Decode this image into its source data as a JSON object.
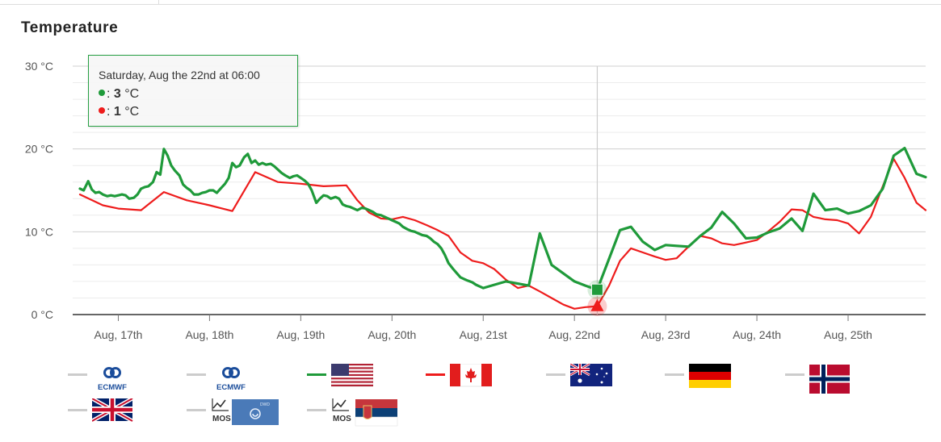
{
  "title": "Temperature",
  "colors": {
    "series_green": "#1f9a3a",
    "series_red": "#ee1c1c",
    "grid": "#d8d8d8",
    "crosshair": "#cccccc"
  },
  "tooltip": {
    "header": "Saturday, Aug the 22nd at 06:00",
    "rows": [
      {
        "color": "#1f9a3a",
        "value": "3",
        "unit": "°C"
      },
      {
        "color": "#ee1c1c",
        "value": "1",
        "unit": "°C"
      }
    ]
  },
  "legend": [
    {
      "name": "ECMWF",
      "icon": "ecmwf-logo",
      "active": false
    },
    {
      "name": "ECMWF",
      "icon": "ecmwf-logo",
      "active": false
    },
    {
      "name": "",
      "icon": "usa-flag",
      "active": true,
      "color": "#1f9a3a"
    },
    {
      "name": "",
      "icon": "canada-flag",
      "active": true,
      "color": "#ee1c1c"
    },
    {
      "name": "",
      "icon": "australia-flag",
      "active": false
    },
    {
      "name": "",
      "icon": "germany-flag",
      "active": false
    },
    {
      "name": "",
      "icon": "norway-flag",
      "active": false
    },
    {
      "name": "",
      "icon": "uk-flag",
      "active": false
    },
    {
      "name": "MOS",
      "icon": "mos-dwd-logo",
      "active": false,
      "badge": "DWD"
    },
    {
      "name": "MOS",
      "icon": "mos-serbia-logo",
      "active": false
    }
  ],
  "chart_data": {
    "type": "line",
    "title": "Temperature",
    "ylabel": "",
    "xlabel": "",
    "ylim": [
      0,
      30
    ],
    "yticks": [
      "0 °C",
      "10 °C",
      "20 °C",
      "30 °C"
    ],
    "ytick_values": [
      0,
      10,
      20,
      30
    ],
    "xlim": [
      16.5,
      25.85
    ],
    "xticks": [
      "Aug, 17th",
      "Aug, 18th",
      "Aug, 19th",
      "Aug, 20th",
      "Aug, 21st",
      "Aug, 22nd",
      "Aug, 23rd",
      "Aug, 24th",
      "Aug, 25th"
    ],
    "xtick_values": [
      17,
      18,
      19,
      20,
      21,
      22,
      23,
      24,
      25
    ],
    "minor_grid_step": 2,
    "crosshair_x": 22.25,
    "grid": true,
    "series": [
      {
        "color": "#1f9a3a",
        "marker": "square",
        "x": [
          16.58,
          16.62,
          16.67,
          16.71,
          16.75,
          16.79,
          16.83,
          16.88,
          16.92,
          16.96,
          17.0,
          17.04,
          17.08,
          17.12,
          17.17,
          17.21,
          17.25,
          17.29,
          17.33,
          17.38,
          17.42,
          17.46,
          17.5,
          17.54,
          17.58,
          17.62,
          17.67,
          17.71,
          17.75,
          17.79,
          17.83,
          17.88,
          17.92,
          17.96,
          18.0,
          18.04,
          18.08,
          18.12,
          18.17,
          18.21,
          18.25,
          18.29,
          18.33,
          18.38,
          18.42,
          18.46,
          18.5,
          18.54,
          18.58,
          18.62,
          18.67,
          18.71,
          18.75,
          18.79,
          18.83,
          18.88,
          18.92,
          18.96,
          19.0,
          19.04,
          19.08,
          19.12,
          19.17,
          19.21,
          19.25,
          19.29,
          19.33,
          19.38,
          19.42,
          19.46,
          19.5,
          19.54,
          19.58,
          19.62,
          19.67,
          19.71,
          19.75,
          19.79,
          19.83,
          19.88,
          19.92,
          19.96,
          20.0,
          20.04,
          20.08,
          20.12,
          20.17,
          20.21,
          20.25,
          20.29,
          20.33,
          20.38,
          20.42,
          20.46,
          20.5,
          20.54,
          20.58,
          20.62,
          20.67,
          20.71,
          20.75,
          20.79,
          20.83,
          20.88,
          20.92,
          20.96,
          21.0,
          21.25,
          21.5,
          21.62,
          21.75,
          22.0,
          22.12,
          22.25,
          22.5,
          22.62,
          22.75,
          22.88,
          23.0,
          23.12,
          23.25,
          23.38,
          23.5,
          23.62,
          23.75,
          23.88,
          24.0,
          24.12,
          24.25,
          24.38,
          24.5,
          24.62,
          24.75,
          24.88,
          25.0,
          25.12,
          25.25,
          25.38,
          25.5,
          25.62,
          25.75,
          25.85
        ],
        "values": [
          15.2,
          15.0,
          16.1,
          15.1,
          14.7,
          14.8,
          14.5,
          14.3,
          14.4,
          14.3,
          14.4,
          14.5,
          14.4,
          14.0,
          14.1,
          14.5,
          15.2,
          15.4,
          15.5,
          16.0,
          17.2,
          16.9,
          20.0,
          19.2,
          18.0,
          17.4,
          16.8,
          15.7,
          15.3,
          15.0,
          14.5,
          14.5,
          14.7,
          14.8,
          15.0,
          15.0,
          14.7,
          15.2,
          15.8,
          16.5,
          18.3,
          17.8,
          18.0,
          19.0,
          19.4,
          18.3,
          18.6,
          18.1,
          18.3,
          18.1,
          18.2,
          17.9,
          17.5,
          17.1,
          16.8,
          16.5,
          16.7,
          16.8,
          16.5,
          16.2,
          15.8,
          15.0,
          13.5,
          14.0,
          14.4,
          14.3,
          14.0,
          14.2,
          14.0,
          13.3,
          13.1,
          13.0,
          12.8,
          12.6,
          12.9,
          12.8,
          12.6,
          12.4,
          12.1,
          12.0,
          11.8,
          11.6,
          11.4,
          11.2,
          11.0,
          10.6,
          10.3,
          10.1,
          10.0,
          9.8,
          9.6,
          9.5,
          9.2,
          8.8,
          8.5,
          8.0,
          7.2,
          6.2,
          5.5,
          5.0,
          4.5,
          4.3,
          4.1,
          3.9,
          3.6,
          3.4,
          3.2,
          4.0,
          3.5,
          9.8,
          6.0,
          4.0,
          3.5,
          3.0,
          10.2,
          10.6,
          8.8,
          7.8,
          8.4,
          8.3,
          8.2,
          9.5,
          10.5,
          12.4,
          11.0,
          9.2,
          9.3,
          9.9,
          10.4,
          11.6,
          10.1,
          14.6,
          12.6,
          12.8,
          12.2,
          12.5,
          13.2,
          15.2,
          19.2,
          20.1,
          17.0,
          16.6
        ]
      },
      {
        "color": "#ee1c1c",
        "marker": "triangle",
        "x": [
          16.58,
          16.83,
          17.0,
          17.25,
          17.5,
          17.75,
          18.0,
          18.25,
          18.5,
          18.75,
          19.0,
          19.25,
          19.5,
          19.62,
          19.75,
          19.88,
          20.0,
          20.12,
          20.25,
          20.38,
          20.5,
          20.62,
          20.75,
          20.88,
          21.0,
          21.12,
          21.25,
          21.38,
          21.5,
          21.62,
          21.75,
          21.88,
          22.0,
          22.12,
          22.25,
          22.38,
          22.5,
          22.62,
          22.75,
          22.88,
          23.0,
          23.12,
          23.25,
          23.38,
          23.5,
          23.62,
          23.75,
          23.88,
          24.0,
          24.12,
          24.25,
          24.38,
          24.5,
          24.62,
          24.75,
          24.88,
          25.0,
          25.12,
          25.25,
          25.38,
          25.5,
          25.62,
          25.75,
          25.85
        ],
        "values": [
          14.5,
          13.2,
          12.8,
          12.6,
          14.8,
          13.8,
          13.2,
          12.5,
          17.2,
          16.0,
          15.8,
          15.5,
          15.6,
          13.8,
          12.3,
          11.6,
          11.5,
          11.8,
          11.4,
          10.8,
          10.2,
          9.5,
          7.5,
          6.5,
          6.2,
          5.5,
          4.2,
          3.2,
          3.5,
          2.8,
          2.0,
          1.2,
          0.7,
          0.9,
          1.0,
          3.5,
          6.5,
          8.0,
          7.5,
          7.0,
          6.6,
          6.8,
          8.2,
          9.5,
          9.2,
          8.6,
          8.4,
          8.7,
          9.0,
          10.0,
          11.2,
          12.7,
          12.6,
          11.8,
          11.5,
          11.4,
          11.0,
          9.8,
          11.8,
          15.5,
          18.8,
          16.5,
          13.5,
          12.6
        ]
      }
    ]
  }
}
